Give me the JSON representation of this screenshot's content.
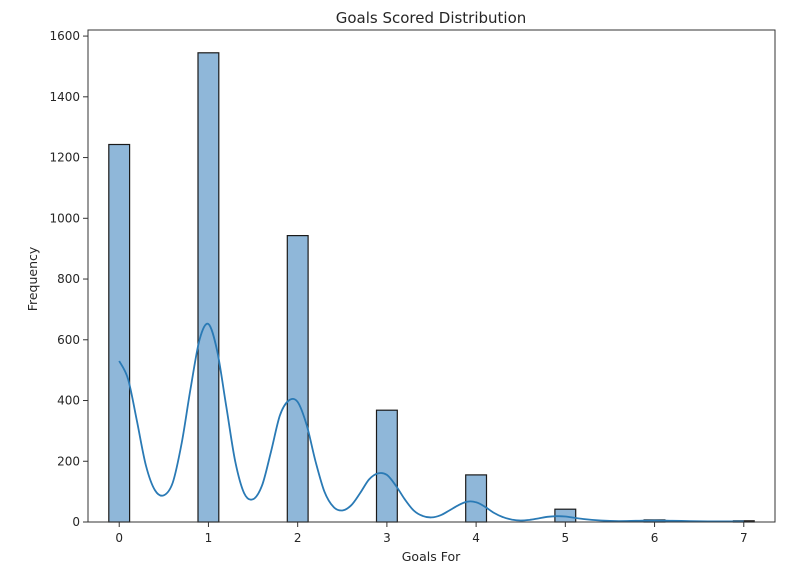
{
  "chart_data": {
    "type": "bar",
    "title": "Goals Scored Distribution",
    "xlabel": "Goals For",
    "ylabel": "Frequency",
    "xlim": [
      -0.35,
      7.35
    ],
    "ylim": [
      0,
      1620
    ],
    "x_ticks": [
      "0",
      "1",
      "2",
      "3",
      "4",
      "5",
      "6",
      "7"
    ],
    "y_ticks": [
      "0",
      "200",
      "400",
      "600",
      "800",
      "1000",
      "1200",
      "1400",
      "1600"
    ],
    "bin_width": 0.2333,
    "bars": [
      {
        "x": 0,
        "value": 1243
      },
      {
        "x": 1,
        "value": 1545
      },
      {
        "x": 2,
        "value": 943
      },
      {
        "x": 3,
        "value": 368
      },
      {
        "x": 4,
        "value": 155
      },
      {
        "x": 5,
        "value": 42
      },
      {
        "x": 6,
        "value": 7
      },
      {
        "x": 7,
        "value": 4
      }
    ],
    "kde": {
      "x": [
        0,
        0.1,
        0.2,
        0.3,
        0.4,
        0.5,
        0.6,
        0.7,
        0.8,
        0.9,
        1.0,
        1.1,
        1.2,
        1.3,
        1.4,
        1.5,
        1.6,
        1.7,
        1.8,
        1.9,
        2.0,
        2.1,
        2.2,
        2.3,
        2.4,
        2.5,
        2.6,
        2.7,
        2.8,
        2.9,
        3.0,
        3.1,
        3.2,
        3.3,
        3.4,
        3.5,
        3.6,
        3.7,
        3.8,
        3.9,
        4.0,
        4.1,
        4.2,
        4.3,
        4.4,
        4.5,
        4.6,
        4.7,
        4.8,
        4.9,
        5.0,
        5.2,
        5.4,
        5.6,
        5.8,
        6.0,
        6.2,
        6.4,
        6.6,
        6.8,
        7.0
      ],
      "y": [
        530,
        470,
        330,
        185,
        105,
        88,
        130,
        260,
        440,
        600,
        652,
        560,
        380,
        200,
        95,
        75,
        120,
        230,
        350,
        400,
        395,
        320,
        200,
        100,
        50,
        38,
        55,
        95,
        140,
        160,
        155,
        120,
        75,
        38,
        20,
        15,
        22,
        38,
        55,
        67,
        65,
        50,
        30,
        16,
        8,
        5,
        7,
        12,
        17,
        19,
        18,
        10,
        5,
        3,
        4,
        5,
        4,
        3,
        2,
        2,
        2
      ]
    },
    "colors": {
      "bar_fill": "#8fb7d9",
      "bar_edge": "#1a1a1a",
      "kde_line": "#2a7ab5",
      "axis": "#333333"
    },
    "grid": false,
    "legend": "none"
  }
}
